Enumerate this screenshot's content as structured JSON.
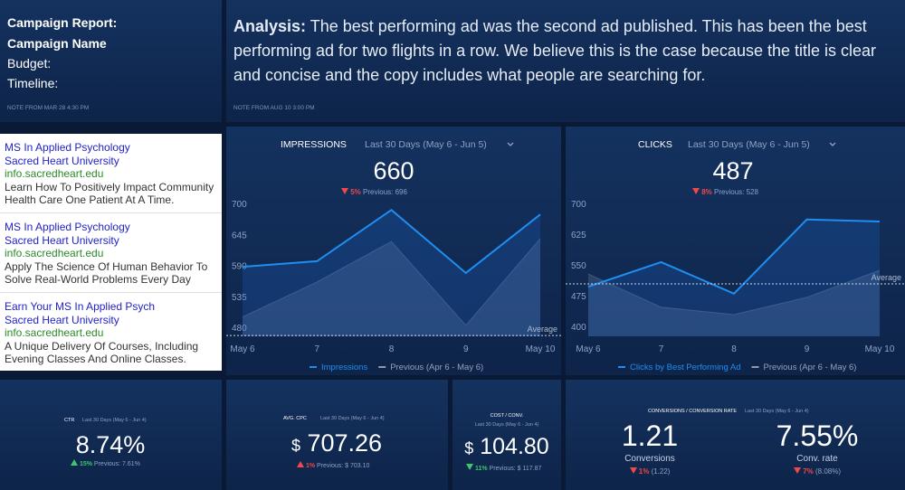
{
  "campaign_note": {
    "title": "Campaign Report:",
    "name": "Campaign Name",
    "budget": "Budget:",
    "timeline": "Timeline:",
    "footer": "NOTE FROM MAR 28 4:30 PM"
  },
  "analysis_note": {
    "label": "Analysis:",
    "text": "The best performing ad was the second ad published. This has been the best performing ad for two flights in a row. We believe this is the case because the title is clear and concise and the copy includes what people are searching for.",
    "footer": "NOTE FROM AUG 10 3:00 PM"
  },
  "ads": [
    {
      "title": "MS In Applied Psychology",
      "school": "Sacred Heart University",
      "url": "info.sacredheart.edu",
      "description": [
        "Learn How To Positively Impact Community",
        "Health Care One Patient At A Time."
      ]
    },
    {
      "title": "MS In Applied Psychology",
      "school": "Sacred Heart University",
      "url": "info.sacredheart.edu",
      "description": [
        "Apply The Science Of Human Behavior To",
        "Solve Real-World Problems Every Day"
      ]
    },
    {
      "title": "Earn Your MS In Applied Psych",
      "school": "Sacred Heart University",
      "url": "info.sacredheart.edu",
      "description": [
        "A Unique Delivery Of Courses, Including",
        "Evening Classes And Online Classes."
      ]
    }
  ],
  "impressions": {
    "title": "IMPRESSIONS",
    "period": "Last 30 Days (May 6 - Jun 5)",
    "value": "660",
    "change": "5%",
    "previous": "Previous: 696",
    "chart_data": {
      "type": "line",
      "categories": [
        "May 6",
        "7",
        "8",
        "9",
        "May 10"
      ],
      "series": [
        {
          "name": "Impressions",
          "color": "#1f8ef1",
          "values": [
            589,
            599,
            690,
            578,
            682
          ]
        },
        {
          "name": "Previous (Apr 6 - May 6)",
          "color": "#8a9bb5",
          "values": [
            500,
            562,
            634,
            485,
            639
          ]
        }
      ],
      "ylim": [
        480,
        700
      ],
      "yticks": [
        480,
        535,
        590,
        645,
        700
      ],
      "average": 467,
      "average_label": "Average"
    }
  },
  "clicks": {
    "title": "CLICKS",
    "period": "Last 30 Days (May 6 - Jun 5)",
    "value": "487",
    "change": "8%",
    "previous": "Previous: 528",
    "chart_data": {
      "type": "line",
      "categories": [
        "May 6",
        "7",
        "8",
        "9",
        "May 10"
      ],
      "series": [
        {
          "name": "Clicks by Best Performing Ad",
          "color": "#1f8ef1",
          "values": [
            499,
            559,
            482,
            663,
            658
          ]
        },
        {
          "name": "Previous (Apr 6 - May 6)",
          "color": "#8a9bb5",
          "values": [
            530,
            449,
            431,
            473,
            539
          ]
        }
      ],
      "ylim": [
        400,
        700
      ],
      "yticks": [
        400,
        475,
        550,
        625,
        700
      ],
      "average": 506,
      "average_label": "Average"
    }
  },
  "ctr": {
    "title": "CTR",
    "period": "Last 30 Days (May 6 - Jun 4)",
    "value": "8.74%",
    "change": "15%",
    "previous": "Previous: 7.61%"
  },
  "avg_cpc": {
    "title": "AVG. CPC",
    "period": "Last 30 Days (May 6 - Jun 4)",
    "currency": "$",
    "value": "707.26",
    "change": "1%",
    "previous": "Previous: $ 703.10"
  },
  "cost_conv": {
    "title": "COST / CONV.",
    "period": "Last 30 Days (May 6 - Jun 4)",
    "currency": "$",
    "value": "104.80",
    "change": "11%",
    "previous": "Previous: $ 117.87"
  },
  "conversions": {
    "title": "CONVERSIONS / CONVERSION RATE",
    "period": "Last 30 Days (May 6 - Jun 4)",
    "left": {
      "value": "1.21",
      "label": "Conversions",
      "change": "1%",
      "previous": "(1.22)"
    },
    "right": {
      "value": "7.55%",
      "label": "Conv. rate",
      "change": "7%",
      "previous": "(8.08%)"
    }
  }
}
